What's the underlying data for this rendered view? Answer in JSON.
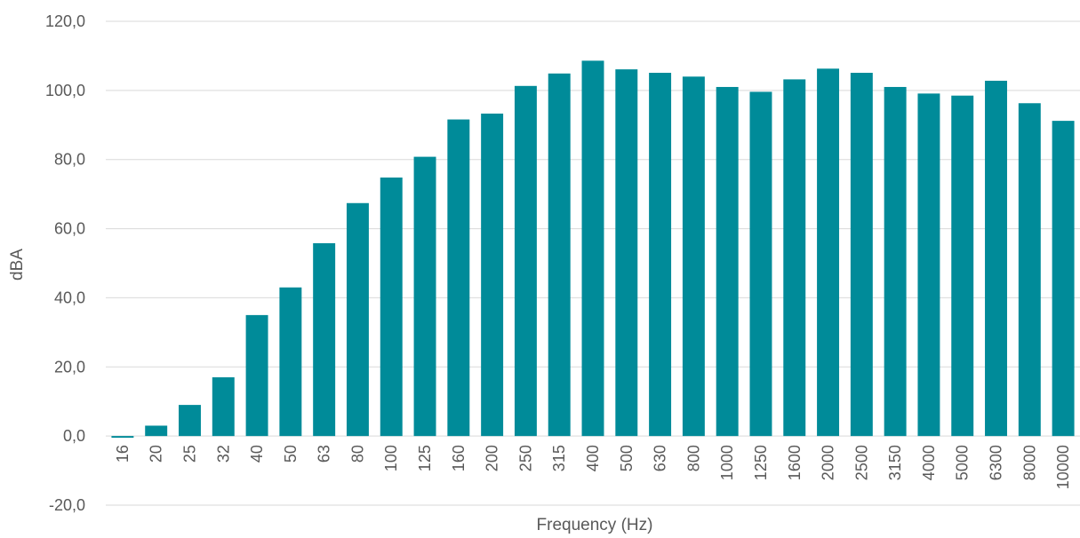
{
  "chart_data": {
    "type": "bar",
    "title": "",
    "xlabel": "Frequency (Hz)",
    "ylabel": "dBA",
    "ylim": [
      -20,
      120
    ],
    "ytick_step": 20,
    "ytick_labels": [
      "-20,0",
      "0,0",
      "20,0",
      "40,0",
      "60,0",
      "80,0",
      "100,0",
      "120,0"
    ],
    "grid": true,
    "legend": "none",
    "bar_color": "#008B99",
    "categories": [
      "16",
      "20",
      "25",
      "32",
      "40",
      "50",
      "63",
      "80",
      "100",
      "125",
      "160",
      "200",
      "250",
      "315",
      "400",
      "500",
      "630",
      "800",
      "1000",
      "1250",
      "1600",
      "2000",
      "2500",
      "3150",
      "4000",
      "5000",
      "6300",
      "8000",
      "10000"
    ],
    "values": [
      -0.5,
      3.0,
      9.0,
      17.0,
      35.0,
      43.0,
      55.8,
      67.4,
      74.8,
      80.8,
      91.6,
      93.3,
      101.3,
      104.9,
      108.6,
      106.1,
      105.1,
      104.0,
      101.0,
      99.6,
      103.2,
      106.3,
      105.1,
      101.0,
      99.1,
      98.5,
      102.8,
      96.3,
      91.2
    ]
  }
}
